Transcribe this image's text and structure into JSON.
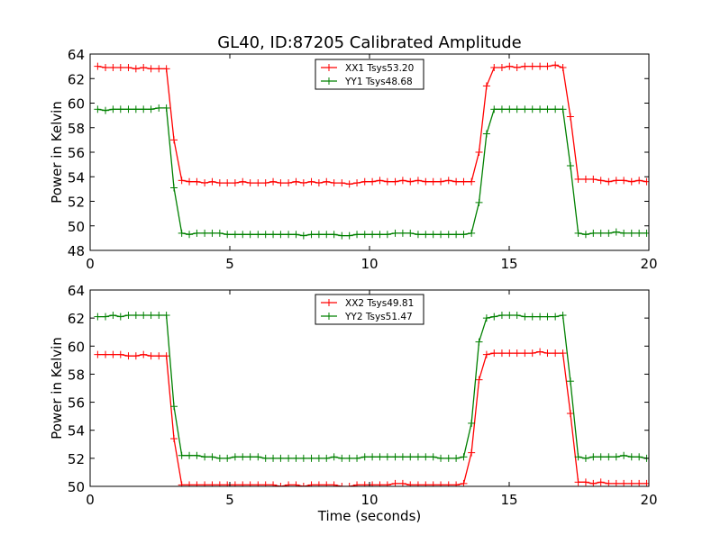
{
  "title": "GL40, ID:87205 Calibrated Amplitude",
  "chart_data": [
    {
      "type": "line",
      "title": "GL40, ID:87205 Calibrated Amplitude",
      "xlabel": "",
      "ylabel": "Power in Kelvin",
      "xlim": [
        0,
        20
      ],
      "ylim": [
        48,
        64
      ],
      "xticks": [
        0,
        5,
        10,
        15,
        20
      ],
      "yticks": [
        48,
        50,
        52,
        54,
        56,
        58,
        60,
        62,
        64
      ],
      "grid": false,
      "legend_position": "top-center",
      "x": [
        0.27,
        0.55,
        0.82,
        1.09,
        1.37,
        1.64,
        1.91,
        2.18,
        2.46,
        2.73,
        3.0,
        3.28,
        3.55,
        3.82,
        4.1,
        4.37,
        4.64,
        4.91,
        5.19,
        5.46,
        5.73,
        6.01,
        6.28,
        6.55,
        6.82,
        7.1,
        7.37,
        7.64,
        7.92,
        8.19,
        8.46,
        8.73,
        9.01,
        9.28,
        9.55,
        9.83,
        10.1,
        10.37,
        10.64,
        10.92,
        11.19,
        11.46,
        11.74,
        12.01,
        12.28,
        12.55,
        12.83,
        13.1,
        13.37,
        13.65,
        13.92,
        14.19,
        14.46,
        14.74,
        15.01,
        15.28,
        15.56,
        15.83,
        16.1,
        16.37,
        16.65,
        16.92,
        17.19,
        17.47,
        17.74,
        18.01,
        18.28,
        18.56,
        18.83,
        19.1,
        19.38,
        19.65,
        19.92
      ],
      "series": [
        {
          "name": "XX1 Tsys53.20",
          "color": "#ff0000",
          "values": [
            63.0,
            62.9,
            62.9,
            62.9,
            62.9,
            62.8,
            62.9,
            62.8,
            62.8,
            62.8,
            57.0,
            53.7,
            53.6,
            53.6,
            53.5,
            53.6,
            53.5,
            53.5,
            53.5,
            53.6,
            53.5,
            53.5,
            53.5,
            53.6,
            53.5,
            53.5,
            53.6,
            53.5,
            53.6,
            53.5,
            53.6,
            53.5,
            53.5,
            53.4,
            53.5,
            53.6,
            53.6,
            53.7,
            53.6,
            53.6,
            53.7,
            53.6,
            53.7,
            53.6,
            53.6,
            53.6,
            53.7,
            53.6,
            53.6,
            53.6,
            56.0,
            61.4,
            62.9,
            62.9,
            63.0,
            62.9,
            63.0,
            63.0,
            63.0,
            63.0,
            63.1,
            62.9,
            58.9,
            53.8,
            53.8,
            53.8,
            53.7,
            53.6,
            53.7,
            53.7,
            53.6,
            53.7,
            53.6
          ]
        },
        {
          "name": "YY1 Tsys48.68",
          "color": "#008000",
          "values": [
            59.5,
            59.4,
            59.5,
            59.5,
            59.5,
            59.5,
            59.5,
            59.5,
            59.6,
            59.6,
            53.1,
            49.4,
            49.3,
            49.4,
            49.4,
            49.4,
            49.4,
            49.3,
            49.3,
            49.3,
            49.3,
            49.3,
            49.3,
            49.3,
            49.3,
            49.3,
            49.3,
            49.2,
            49.3,
            49.3,
            49.3,
            49.3,
            49.2,
            49.2,
            49.3,
            49.3,
            49.3,
            49.3,
            49.3,
            49.4,
            49.4,
            49.4,
            49.3,
            49.3,
            49.3,
            49.3,
            49.3,
            49.3,
            49.3,
            49.4,
            51.9,
            57.5,
            59.5,
            59.5,
            59.5,
            59.5,
            59.5,
            59.5,
            59.5,
            59.5,
            59.5,
            59.5,
            54.9,
            49.4,
            49.3,
            49.4,
            49.4,
            49.4,
            49.5,
            49.4,
            49.4,
            49.4,
            49.4
          ]
        }
      ]
    },
    {
      "type": "line",
      "title": "",
      "xlabel": "Time (seconds)",
      "ylabel": "Power in Kelvin",
      "xlim": [
        0,
        20
      ],
      "ylim": [
        50,
        64
      ],
      "xticks": [
        0,
        5,
        10,
        15,
        20
      ],
      "yticks": [
        50,
        52,
        54,
        56,
        58,
        60,
        62,
        64
      ],
      "grid": false,
      "legend_position": "top-center",
      "x": [
        0.27,
        0.55,
        0.82,
        1.09,
        1.37,
        1.64,
        1.91,
        2.18,
        2.46,
        2.73,
        3.0,
        3.28,
        3.55,
        3.82,
        4.1,
        4.37,
        4.64,
        4.91,
        5.19,
        5.46,
        5.73,
        6.01,
        6.28,
        6.55,
        6.82,
        7.1,
        7.37,
        7.64,
        7.92,
        8.19,
        8.46,
        8.73,
        9.01,
        9.28,
        9.55,
        9.83,
        10.1,
        10.37,
        10.64,
        10.92,
        11.19,
        11.46,
        11.74,
        12.01,
        12.28,
        12.55,
        12.83,
        13.1,
        13.37,
        13.65,
        13.92,
        14.19,
        14.46,
        14.74,
        15.01,
        15.28,
        15.56,
        15.83,
        16.1,
        16.37,
        16.65,
        16.92,
        17.19,
        17.47,
        17.74,
        18.01,
        18.28,
        18.56,
        18.83,
        19.1,
        19.38,
        19.65,
        19.92
      ],
      "series": [
        {
          "name": "XX2 Tsys49.81",
          "color": "#ff0000",
          "values": [
            59.4,
            59.4,
            59.4,
            59.4,
            59.3,
            59.3,
            59.4,
            59.3,
            59.3,
            59.3,
            53.4,
            50.1,
            50.1,
            50.1,
            50.1,
            50.1,
            50.1,
            50.1,
            50.1,
            50.1,
            50.1,
            50.1,
            50.1,
            50.1,
            50.0,
            50.1,
            50.1,
            50.0,
            50.1,
            50.1,
            50.1,
            50.1,
            50.0,
            50.0,
            50.1,
            50.1,
            50.1,
            50.1,
            50.1,
            50.2,
            50.2,
            50.1,
            50.1,
            50.1,
            50.1,
            50.1,
            50.1,
            50.1,
            50.2,
            52.4,
            57.6,
            59.4,
            59.5,
            59.5,
            59.5,
            59.5,
            59.5,
            59.5,
            59.6,
            59.5,
            59.5,
            59.5,
            55.2,
            50.3,
            50.3,
            50.2,
            50.3,
            50.2,
            50.2,
            50.2,
            50.2,
            50.2,
            50.2
          ]
        },
        {
          "name": "YY2 Tsys51.47",
          "color": "#008000",
          "values": [
            62.1,
            62.1,
            62.2,
            62.1,
            62.2,
            62.2,
            62.2,
            62.2,
            62.2,
            62.2,
            55.7,
            52.2,
            52.2,
            52.2,
            52.1,
            52.1,
            52.0,
            52.0,
            52.1,
            52.1,
            52.1,
            52.1,
            52.0,
            52.0,
            52.0,
            52.0,
            52.0,
            52.0,
            52.0,
            52.0,
            52.0,
            52.1,
            52.0,
            52.0,
            52.0,
            52.1,
            52.1,
            52.1,
            52.1,
            52.1,
            52.1,
            52.1,
            52.1,
            52.1,
            52.1,
            52.0,
            52.0,
            52.0,
            52.1,
            54.5,
            60.3,
            62.0,
            62.1,
            62.2,
            62.2,
            62.2,
            62.1,
            62.1,
            62.1,
            62.1,
            62.1,
            62.2,
            57.5,
            52.1,
            52.0,
            52.1,
            52.1,
            52.1,
            52.1,
            52.2,
            52.1,
            52.1,
            52.0
          ]
        }
      ]
    }
  ]
}
